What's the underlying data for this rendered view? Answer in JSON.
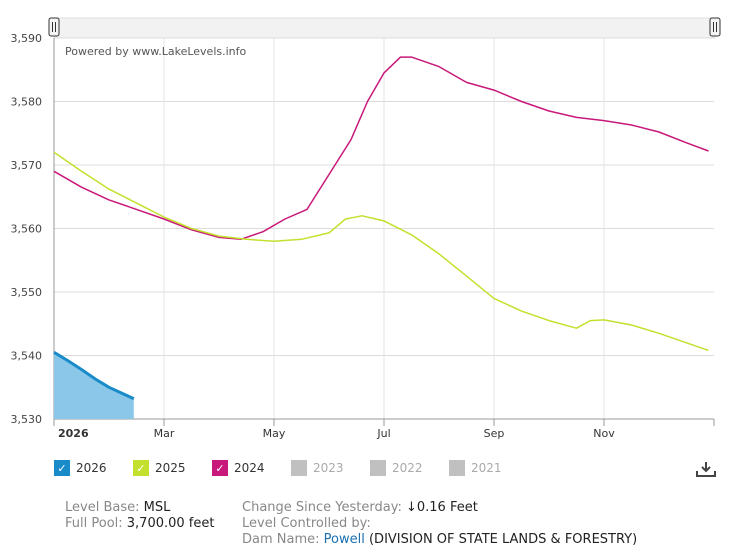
{
  "chart_data": {
    "type": "line",
    "watermark": "Powered by www.LakeLevels.info",
    "ylim": [
      3530,
      3590
    ],
    "yticks": [
      "3,530",
      "3,540",
      "3,550",
      "3,560",
      "3,570",
      "3,580",
      "3,590"
    ],
    "xticks": [
      {
        "label": "2026",
        "m": 0,
        "bold": true
      },
      {
        "label": "Mar",
        "m": 2
      },
      {
        "label": "May",
        "m": 4
      },
      {
        "label": "Jul",
        "m": 6
      },
      {
        "label": "Sep",
        "m": 8
      },
      {
        "label": "Nov",
        "m": 10
      }
    ],
    "series": [
      {
        "name": "2026",
        "color": "#1a8bc9",
        "fill": "#8bc7e8",
        "area": true,
        "points": [
          [
            0,
            3540.5
          ],
          [
            0.25,
            3539.2
          ],
          [
            0.5,
            3537.8
          ],
          [
            0.75,
            3536.3
          ],
          [
            1.0,
            3535
          ],
          [
            1.3,
            3533.8
          ],
          [
            1.45,
            3533.2
          ]
        ]
      },
      {
        "name": "2025",
        "color": "#c4e02e",
        "area": false,
        "points": [
          [
            0,
            3572
          ],
          [
            0.5,
            3569
          ],
          [
            1.0,
            3566.2
          ],
          [
            1.5,
            3564
          ],
          [
            2.0,
            3561.8
          ],
          [
            2.5,
            3560
          ],
          [
            3.0,
            3558.8
          ],
          [
            3.5,
            3558.3
          ],
          [
            4.0,
            3558
          ],
          [
            4.5,
            3558.3
          ],
          [
            5.0,
            3559.3
          ],
          [
            5.3,
            3561.5
          ],
          [
            5.6,
            3562
          ],
          [
            6.0,
            3561.2
          ],
          [
            6.5,
            3559
          ],
          [
            7.0,
            3556
          ],
          [
            7.5,
            3552.5
          ],
          [
            8.0,
            3549
          ],
          [
            8.5,
            3547
          ],
          [
            9.0,
            3545.5
          ],
          [
            9.5,
            3544.3
          ],
          [
            9.75,
            3545.5
          ],
          [
            10.0,
            3545.6
          ],
          [
            10.5,
            3544.8
          ],
          [
            11.0,
            3543.5
          ],
          [
            11.5,
            3542
          ],
          [
            11.9,
            3540.8
          ]
        ]
      },
      {
        "name": "2024",
        "color": "#c8187a",
        "area": false,
        "points": [
          [
            0,
            3569
          ],
          [
            0.5,
            3566.5
          ],
          [
            1.0,
            3564.5
          ],
          [
            1.5,
            3563
          ],
          [
            2.0,
            3561.5
          ],
          [
            2.5,
            3559.8
          ],
          [
            3.0,
            3558.6
          ],
          [
            3.4,
            3558.3
          ],
          [
            3.8,
            3559.5
          ],
          [
            4.2,
            3561.5
          ],
          [
            4.6,
            3563
          ],
          [
            5.0,
            3568.5
          ],
          [
            5.4,
            3574
          ],
          [
            5.7,
            3580
          ],
          [
            6.0,
            3584.5
          ],
          [
            6.3,
            3587
          ],
          [
            6.5,
            3587
          ],
          [
            7.0,
            3585.5
          ],
          [
            7.5,
            3583
          ],
          [
            8.0,
            3581.8
          ],
          [
            8.5,
            3580
          ],
          [
            9.0,
            3578.5
          ],
          [
            9.5,
            3577.5
          ],
          [
            10.0,
            3577
          ],
          [
            10.5,
            3576.3
          ],
          [
            11.0,
            3575.2
          ],
          [
            11.5,
            3573.5
          ],
          [
            11.9,
            3572.2
          ]
        ]
      }
    ]
  },
  "legend": {
    "items": [
      {
        "label": "2026",
        "color": "#1a8bc9",
        "active": true
      },
      {
        "label": "2025",
        "color": "#c4e02e",
        "active": true
      },
      {
        "label": "2024",
        "color": "#c8187a",
        "active": true
      },
      {
        "label": "2023",
        "color": "#c0c0c0",
        "active": false
      },
      {
        "label": "2022",
        "color": "#c0c0c0",
        "active": false
      },
      {
        "label": "2021",
        "color": "#c0c0c0",
        "active": false
      }
    ],
    "check_glyph": "✓"
  },
  "info": {
    "level_base_label": "Level Base:",
    "level_base_value": "MSL",
    "full_pool_label": "Full Pool:",
    "full_pool_value": "3,700.00 feet",
    "change_label": "Change Since Yesterday:",
    "change_value": "↓0.16 Feet",
    "controlled_label": "Level Controlled by:",
    "dam_label": "Dam Name:",
    "dam_link": "Powell",
    "dam_agency": "(DIVISION OF STATE LANDS & FORESTRY)"
  }
}
